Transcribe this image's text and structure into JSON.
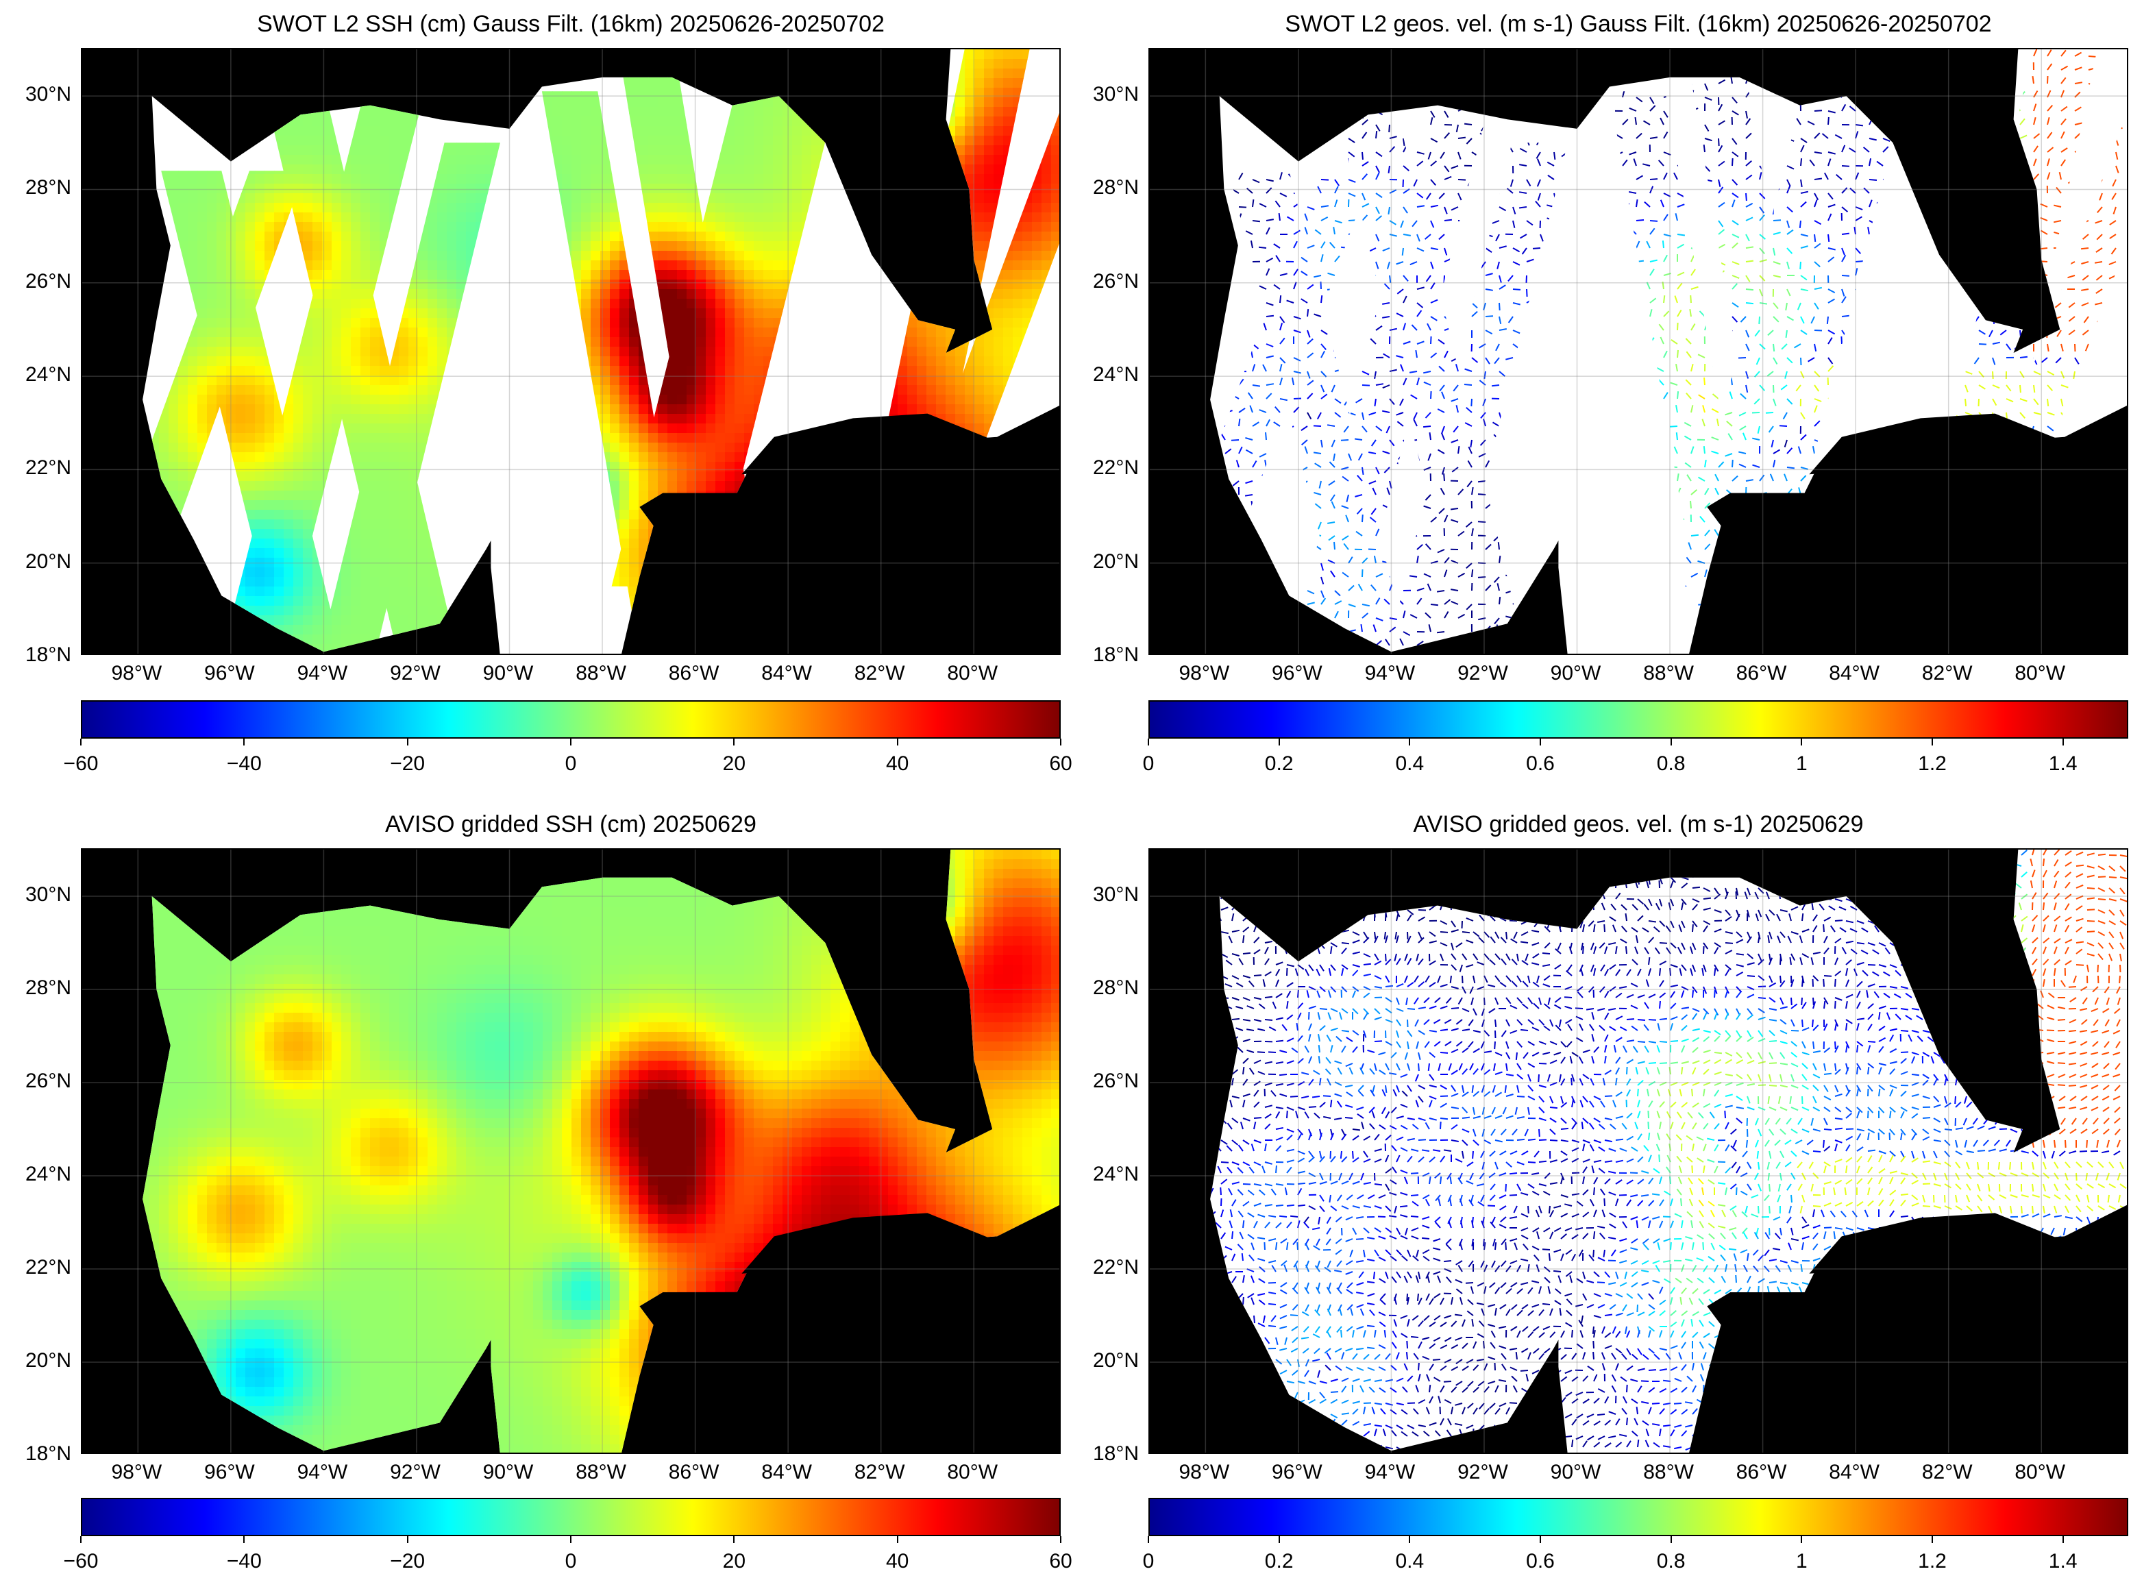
{
  "panels": [
    {
      "id": "swot-ssh",
      "title": "SWOT L2 SSH (cm) Gauss Filt. (16km) 20250626-20250702",
      "field": "ssh-swaths",
      "colorbar": {
        "ticks": [
          "−60",
          "−40",
          "−20",
          "0",
          "20",
          "40",
          "60"
        ],
        "min": -60,
        "max": 60
      }
    },
    {
      "id": "swot-vel",
      "title": "SWOT L2 geos. vel. (m s-1) Gauss Filt. (16km) 20250626-20250702",
      "field": "vel-swaths",
      "colorbar": {
        "ticks": [
          "0",
          "0.2",
          "0.4",
          "0.6",
          "0.8",
          "1",
          "1.2",
          "1.4"
        ],
        "min": 0,
        "max": 1.5
      }
    },
    {
      "id": "aviso-ssh",
      "title": "AVISO gridded SSH (cm) 20250629",
      "field": "ssh-grid",
      "colorbar": {
        "ticks": [
          "−60",
          "−40",
          "−20",
          "0",
          "20",
          "40",
          "60"
        ],
        "min": -60,
        "max": 60
      }
    },
    {
      "id": "aviso-vel",
      "title": "AVISO gridded geos. vel. (m s-1)  20250629",
      "field": "vel-grid",
      "colorbar": {
        "ticks": [
          "0",
          "0.2",
          "0.4",
          "0.6",
          "0.8",
          "1",
          "1.2",
          "1.4"
        ],
        "min": 0,
        "max": 1.5
      }
    }
  ],
  "axes": {
    "lat_labels": [
      "30°N",
      "28°N",
      "26°N",
      "24°N",
      "22°N",
      "20°N",
      "18°N"
    ],
    "lon_labels": [
      "98°W",
      "96°W",
      "94°W",
      "92°W",
      "90°W",
      "88°W",
      "86°W",
      "84°W",
      "82°W",
      "80°W"
    ],
    "lat_range": [
      18,
      31
    ],
    "lon_range": [
      -99.2,
      -78.1
    ]
  },
  "colors": {
    "land": "#000000",
    "ocean_no_data": "#ffffff",
    "colormap": "jet"
  }
}
